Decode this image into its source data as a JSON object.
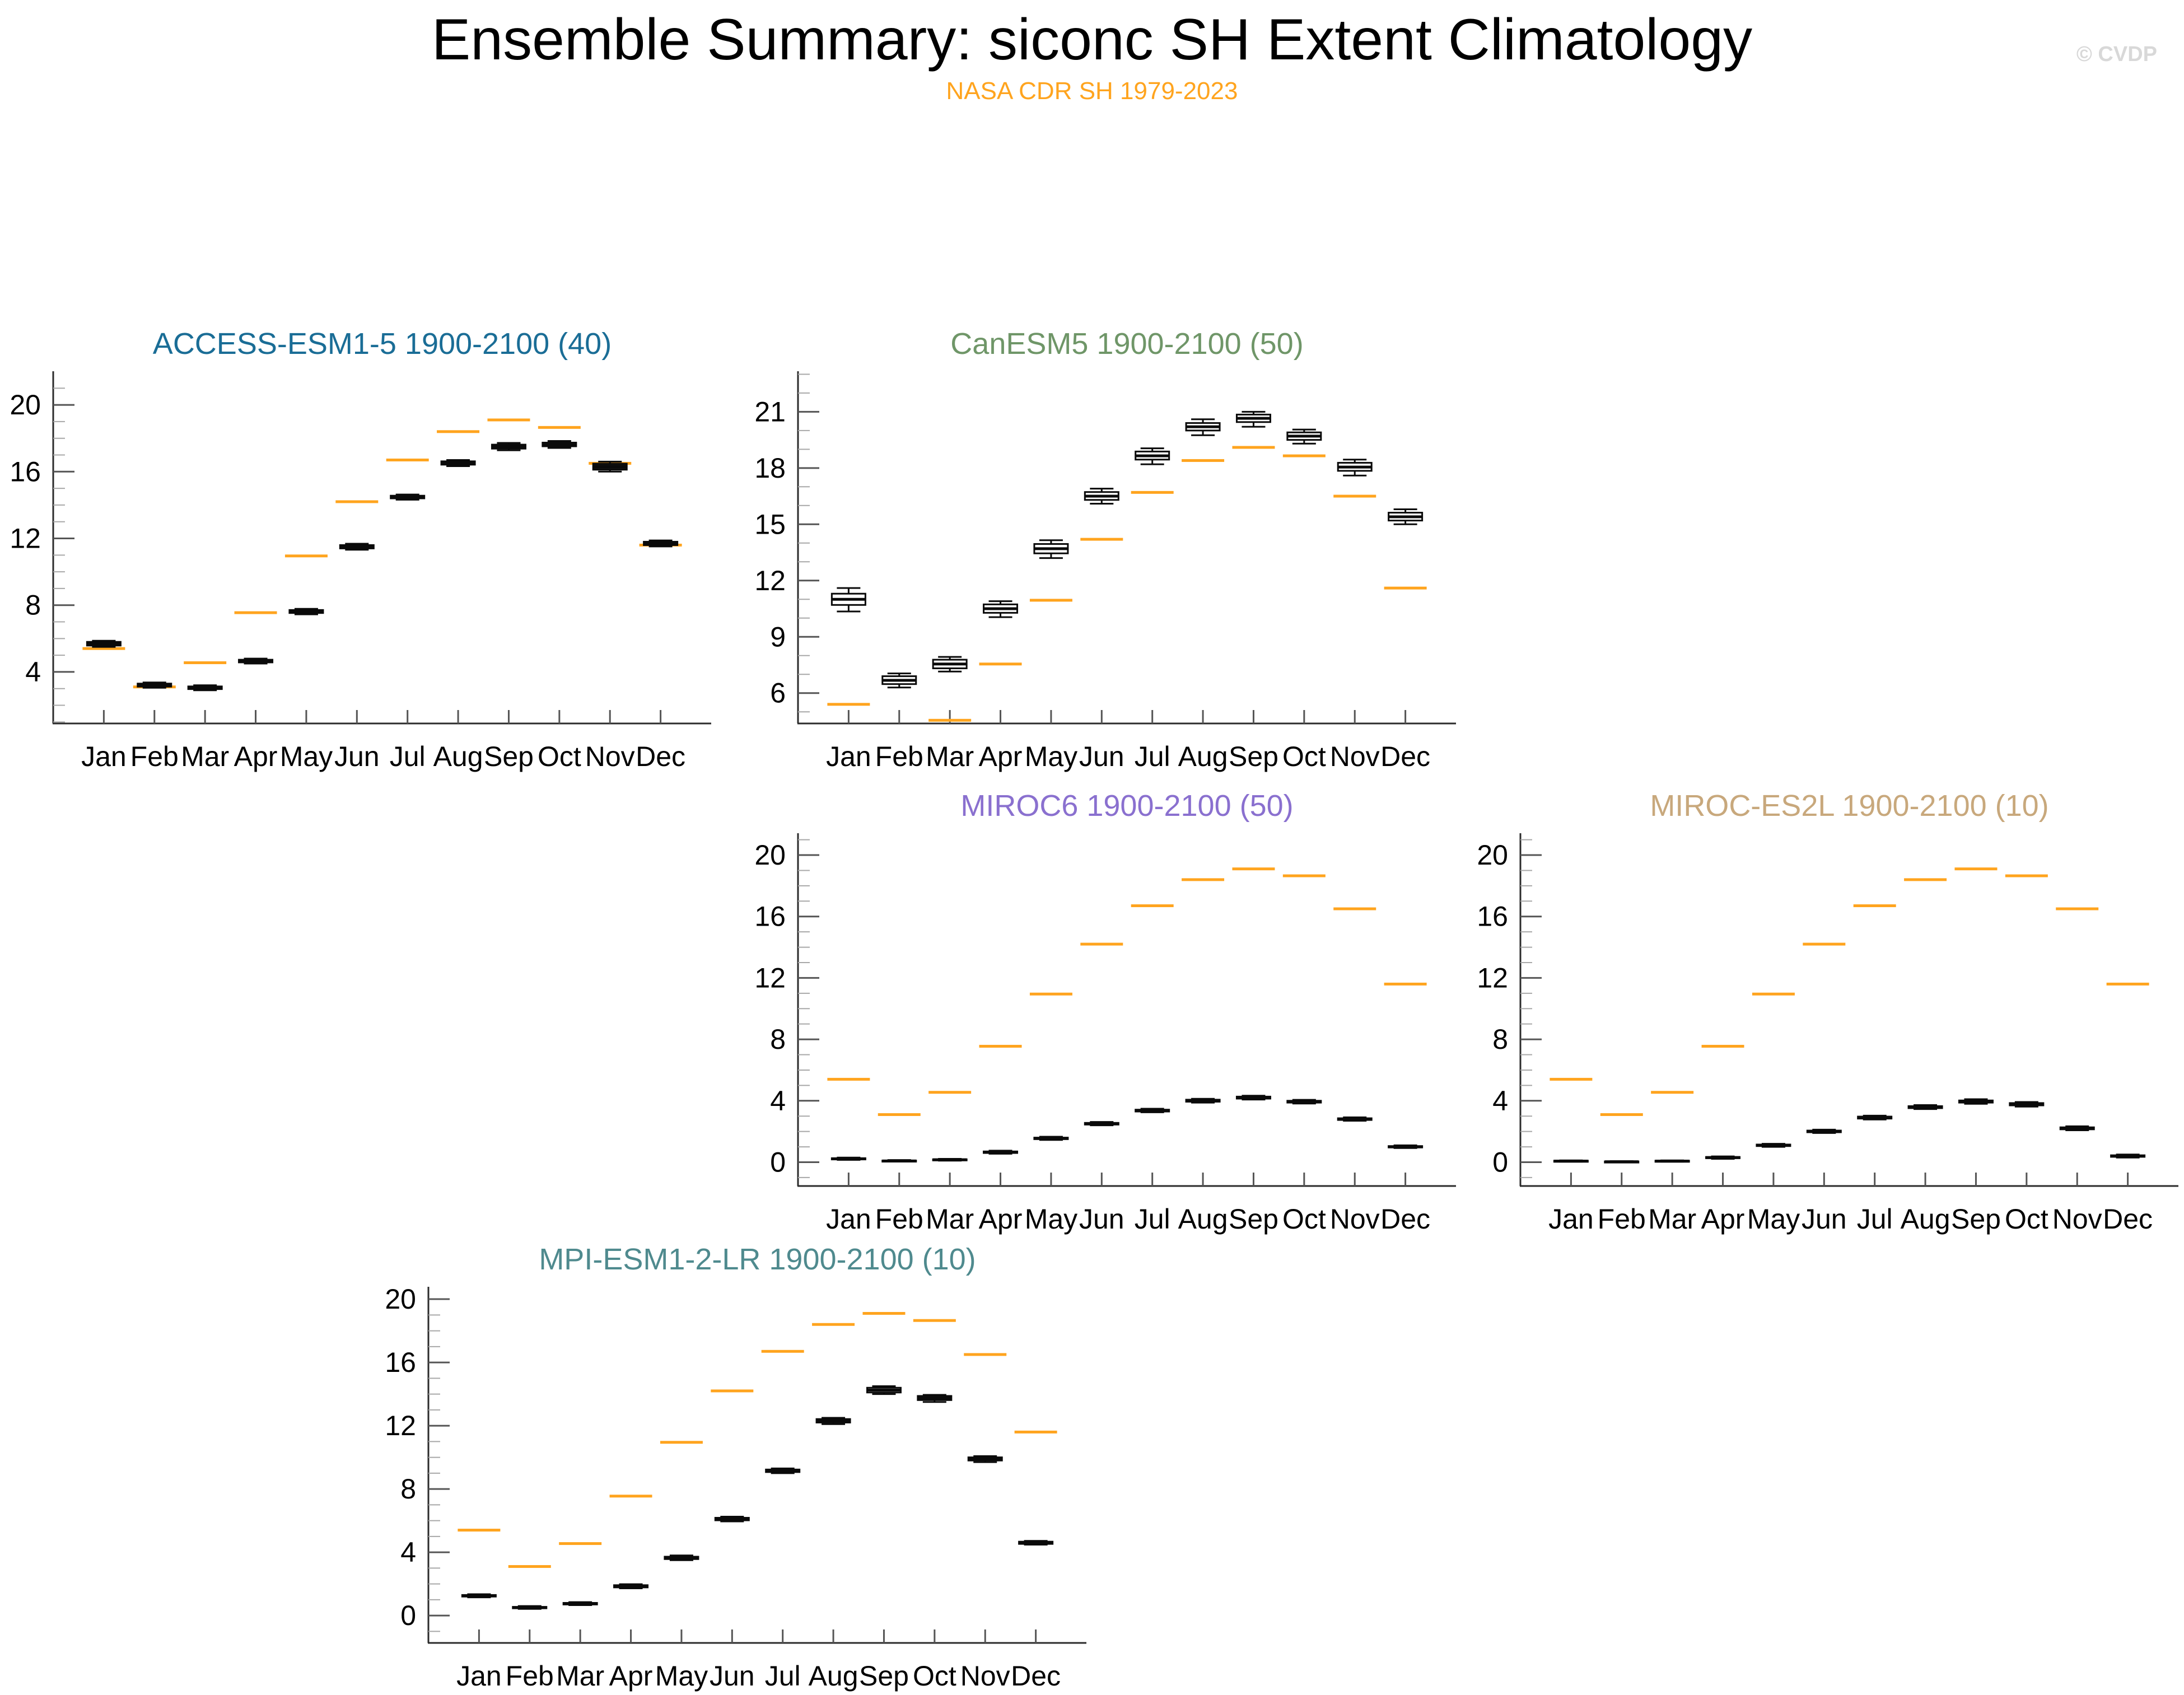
{
  "header": {
    "title": "Ensemble Summary: siconc SH Extent Climatology",
    "subtitle": "NASA CDR SH 1979-2023",
    "watermark": "© CVDP"
  },
  "colors": {
    "subtitle": "#FFA41E",
    "obs": "#FFA41E",
    "axis": "#2b2b2b",
    "major_tick": "#555555",
    "minor_tick": "#a8a8a8",
    "box_stroke": "#0a0a0a",
    "label": "#000000",
    "watermark": "#d8d8d8"
  },
  "months": [
    "Jan",
    "Feb",
    "Mar",
    "Apr",
    "May",
    "Jun",
    "Jul",
    "Aug",
    "Sep",
    "Oct",
    "Nov",
    "Dec"
  ],
  "chart_data": {
    "type": "box",
    "title": "Ensemble Summary: siconc SH Extent Climatology",
    "subtitle": "NASA CDR SH 1979-2023",
    "xlabel": "",
    "ylabel": "",
    "grid": false,
    "legend": "none",
    "categories": [
      "Jan",
      "Feb",
      "Mar",
      "Apr",
      "May",
      "Jun",
      "Jul",
      "Aug",
      "Sep",
      "Oct",
      "Nov",
      "Dec"
    ],
    "observation_series": {
      "label": "NASA CDR SH 1979-2023",
      "values": [
        5.4,
        3.1,
        4.55,
        7.55,
        10.95,
        14.2,
        16.7,
        18.4,
        19.1,
        18.65,
        16.5,
        11.6
      ]
    },
    "panels": [
      {
        "id": "access-esm1-5",
        "title": "ACCESS-ESM1-5 1900-2100 (40)",
        "title_color": "#1A6D96",
        "ylim": [
          0.91,
          21.95
        ],
        "ytick_major": [
          4,
          8,
          12,
          16,
          20
        ],
        "box_fill": "#111111",
        "stats": [
          [
            5.5,
            5.58,
            5.7,
            5.8,
            5.87
          ],
          [
            3.05,
            3.12,
            3.2,
            3.3,
            3.37
          ],
          [
            2.9,
            2.97,
            3.05,
            3.13,
            3.2
          ],
          [
            4.5,
            4.57,
            4.65,
            4.73,
            4.8
          ],
          [
            7.45,
            7.53,
            7.62,
            7.71,
            7.78
          ],
          [
            11.32,
            11.4,
            11.5,
            11.6,
            11.68
          ],
          [
            14.32,
            14.4,
            14.48,
            14.56,
            14.63
          ],
          [
            16.33,
            16.42,
            16.52,
            16.62,
            16.7
          ],
          [
            17.28,
            17.38,
            17.5,
            17.62,
            17.72
          ],
          [
            17.42,
            17.52,
            17.63,
            17.74,
            17.84
          ],
          [
            16.0,
            16.12,
            16.3,
            16.48,
            16.6
          ],
          [
            11.52,
            11.6,
            11.7,
            11.8,
            11.88
          ]
        ]
      },
      {
        "id": "canesm5",
        "title": "CanESM5 1900-2100 (50)",
        "title_color": "#6F9668",
        "ylim": [
          4.38,
          23.1
        ],
        "ytick_major": [
          6,
          9,
          12,
          15,
          18,
          21
        ],
        "box_fill": "#ffffff",
        "stats": [
          [
            10.35,
            10.7,
            11.0,
            11.3,
            11.6
          ],
          [
            6.3,
            6.48,
            6.68,
            6.9,
            7.05
          ],
          [
            7.15,
            7.32,
            7.55,
            7.78,
            7.93
          ],
          [
            10.05,
            10.28,
            10.5,
            10.73,
            10.9
          ],
          [
            13.2,
            13.45,
            13.7,
            13.95,
            14.15
          ],
          [
            16.1,
            16.3,
            16.5,
            16.72,
            16.9
          ],
          [
            18.2,
            18.45,
            18.65,
            18.88,
            19.05
          ],
          [
            19.75,
            20.0,
            20.2,
            20.4,
            20.6
          ],
          [
            20.2,
            20.45,
            20.65,
            20.85,
            21.0
          ],
          [
            19.3,
            19.5,
            19.7,
            19.9,
            20.05
          ],
          [
            17.6,
            17.85,
            18.05,
            18.28,
            18.45
          ],
          [
            15.0,
            15.2,
            15.4,
            15.62,
            15.8
          ]
        ]
      },
      {
        "id": "miroc6",
        "title": "MIROC6 1900-2100 (50)",
        "title_color": "#8A70CF",
        "ylim": [
          -1.55,
          21.35
        ],
        "ytick_major": [
          0,
          4,
          8,
          12,
          16,
          20
        ],
        "box_fill": "#111111",
        "stats": [
          [
            0.15,
            0.18,
            0.22,
            0.26,
            0.3
          ],
          [
            0.04,
            0.06,
            0.08,
            0.11,
            0.14
          ],
          [
            0.1,
            0.13,
            0.16,
            0.19,
            0.22
          ],
          [
            0.55,
            0.6,
            0.65,
            0.7,
            0.75
          ],
          [
            1.45,
            1.5,
            1.55,
            1.6,
            1.66
          ],
          [
            2.4,
            2.45,
            2.5,
            2.56,
            2.62
          ],
          [
            3.25,
            3.3,
            3.36,
            3.42,
            3.48
          ],
          [
            3.88,
            3.94,
            4.0,
            4.07,
            4.13
          ],
          [
            4.08,
            4.14,
            4.2,
            4.27,
            4.33
          ],
          [
            3.82,
            3.88,
            3.94,
            4.0,
            4.06
          ],
          [
            2.7,
            2.75,
            2.8,
            2.86,
            2.92
          ],
          [
            0.92,
            0.96,
            1.0,
            1.05,
            1.1
          ]
        ]
      },
      {
        "id": "miroc-es2l",
        "title": "MIROC-ES2L 1900-2100 (10)",
        "title_color": "#C8A87C",
        "ylim": [
          -1.55,
          21.35
        ],
        "ytick_major": [
          0,
          4,
          8,
          12,
          16,
          20
        ],
        "box_fill": "#111111",
        "stats": [
          [
            0.03,
            0.05,
            0.07,
            0.1,
            0.12
          ],
          [
            0.0,
            0.01,
            0.03,
            0.05,
            0.07
          ],
          [
            0.03,
            0.05,
            0.07,
            0.1,
            0.12
          ],
          [
            0.22,
            0.26,
            0.3,
            0.34,
            0.38
          ],
          [
            1.0,
            1.05,
            1.1,
            1.15,
            1.2
          ],
          [
            1.9,
            1.95,
            2.0,
            2.06,
            2.12
          ],
          [
            2.78,
            2.84,
            2.9,
            2.97,
            3.03
          ],
          [
            3.46,
            3.52,
            3.58,
            3.65,
            3.72
          ],
          [
            3.8,
            3.88,
            3.95,
            4.02,
            4.1
          ],
          [
            3.62,
            3.7,
            3.78,
            3.85,
            3.92
          ],
          [
            2.08,
            2.14,
            2.2,
            2.27,
            2.34
          ],
          [
            0.3,
            0.35,
            0.4,
            0.45,
            0.5
          ]
        ]
      },
      {
        "id": "mpi-esm1-2-lr",
        "title": "MPI-ESM1-2-LR 1900-2100 (10)",
        "title_color": "#4F8A8E",
        "ylim": [
          -1.73,
          20.71
        ],
        "ytick_major": [
          0,
          4,
          8,
          12,
          16,
          20
        ],
        "box_fill": "#ffffff",
        "stats": [
          [
            1.15,
            1.2,
            1.25,
            1.3,
            1.35
          ],
          [
            0.42,
            0.46,
            0.5,
            0.55,
            0.6
          ],
          [
            0.66,
            0.7,
            0.75,
            0.8,
            0.85
          ],
          [
            1.72,
            1.78,
            1.85,
            1.92,
            1.98
          ],
          [
            3.5,
            3.57,
            3.65,
            3.72,
            3.8
          ],
          [
            5.95,
            6.02,
            6.1,
            6.18,
            6.25
          ],
          [
            9.0,
            9.07,
            9.15,
            9.23,
            9.3
          ],
          [
            12.1,
            12.2,
            12.3,
            12.42,
            12.5
          ],
          [
            14.0,
            14.1,
            14.25,
            14.4,
            14.5
          ],
          [
            13.5,
            13.62,
            13.75,
            13.88,
            13.95
          ],
          [
            9.7,
            9.8,
            9.9,
            10.0,
            10.08
          ],
          [
            4.48,
            4.53,
            4.6,
            4.67,
            4.72
          ]
        ]
      }
    ]
  }
}
